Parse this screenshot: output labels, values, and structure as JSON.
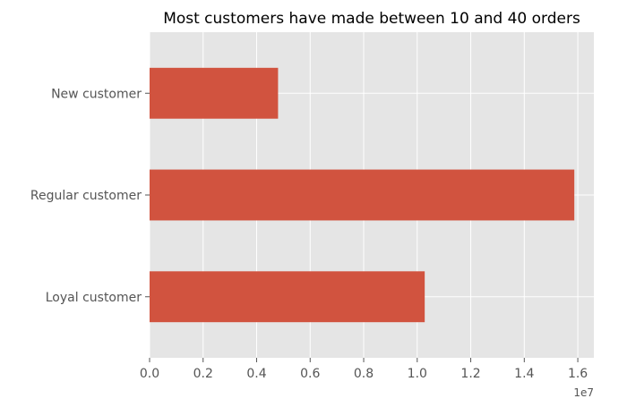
{
  "chart_data": {
    "type": "bar",
    "orientation": "horizontal",
    "title": "Most customers have made between 10 and 40 orders",
    "xlabel": "",
    "ylabel": "",
    "categories": [
      "Loyal customer",
      "Regular customer",
      "New customer"
    ],
    "values": [
      10280000,
      15870000,
      4800000
    ],
    "xlim": [
      0,
      16600000
    ],
    "x_ticks": [
      0,
      2000000,
      4000000,
      6000000,
      8000000,
      10000000,
      12000000,
      14000000,
      16000000
    ],
    "x_tick_labels": [
      "0.0",
      "0.2",
      "0.4",
      "0.6",
      "0.8",
      "1.0",
      "1.2",
      "1.4",
      "1.6"
    ],
    "x_offset_label": "1e7",
    "grid": true,
    "legend": "none",
    "colors": {
      "bar": "#d1533f",
      "plot_background": "#e5e5e5",
      "grid": "#ffffff",
      "tick_text": "#555555"
    }
  }
}
